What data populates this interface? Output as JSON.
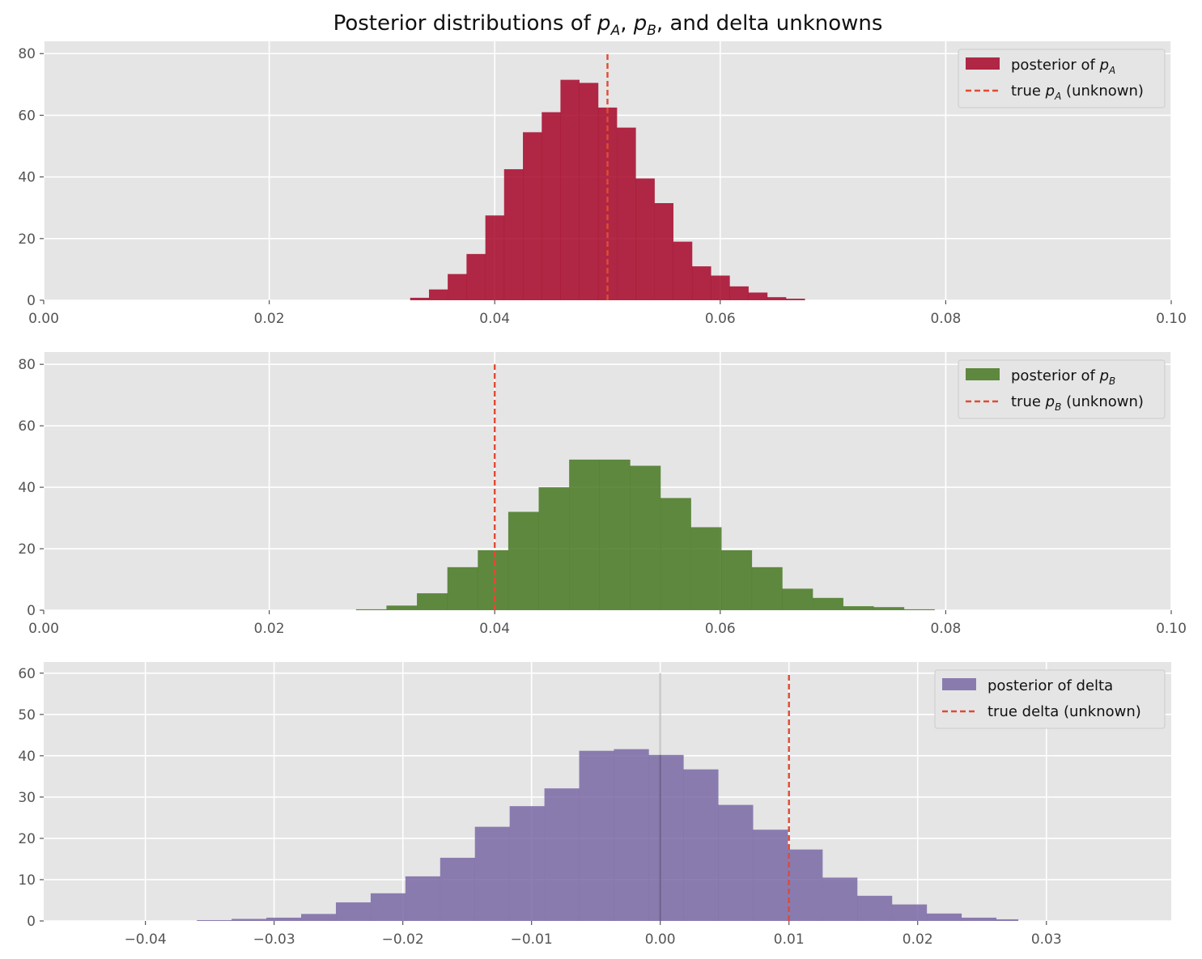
{
  "title": {
    "prefix": "Posterior distributions of ",
    "p": "p",
    "a_sub": "A",
    "sep1": ", ",
    "b_sub": "B",
    "suffix": ", and delta unknowns"
  },
  "chart_data": [
    {
      "type": "bar",
      "subtype": "histogram",
      "xlim": [
        0.0,
        0.1
      ],
      "ylim": [
        0,
        84
      ],
      "xticks": [
        0.0,
        0.02,
        0.04,
        0.06,
        0.08,
        0.1
      ],
      "xtick_labels": [
        "0.00",
        "0.02",
        "0.04",
        "0.06",
        "0.08",
        "0.10"
      ],
      "yticks": [
        0,
        20,
        40,
        60,
        80
      ],
      "ytick_labels": [
        "0",
        "20",
        "40",
        "60",
        "80"
      ],
      "grid": true,
      "legend_position": "top-right",
      "series": [
        {
          "name": "posterior of p_A",
          "legend_prefix": "posterior of ",
          "legend_var": "p",
          "legend_sub": "A",
          "legend_suffix": "",
          "color": "#A60628",
          "bin_edges": [
            0.0325,
            0.03417,
            0.03583,
            0.0375,
            0.03917,
            0.04083,
            0.0425,
            0.04417,
            0.04583,
            0.0475,
            0.04917,
            0.05083,
            0.0525,
            0.05417,
            0.05583,
            0.0575,
            0.05917,
            0.06083,
            0.0625,
            0.06417,
            0.06583,
            0.0675
          ],
          "values": [
            0.8,
            3.5,
            8.5,
            15,
            27.5,
            42.5,
            54.5,
            61,
            71.5,
            70.5,
            62.5,
            56,
            39.5,
            31.5,
            19,
            11,
            8,
            4.5,
            2.5,
            1,
            0.5
          ]
        }
      ],
      "reference_line": {
        "name": "true p_A (unknown)",
        "legend_prefix": "true ",
        "legend_var": "p",
        "legend_sub": "A",
        "legend_suffix": " (unknown)",
        "x": 0.05,
        "y_range": [
          0,
          80
        ],
        "color": "#E24A33",
        "style": "dashed"
      }
    },
    {
      "type": "bar",
      "subtype": "histogram",
      "xlim": [
        0.0,
        0.1
      ],
      "ylim": [
        0,
        84
      ],
      "xticks": [
        0.0,
        0.02,
        0.04,
        0.06,
        0.08,
        0.1
      ],
      "xtick_labels": [
        "0.00",
        "0.02",
        "0.04",
        "0.06",
        "0.08",
        "0.10"
      ],
      "yticks": [
        0,
        20,
        40,
        60,
        80
      ],
      "ytick_labels": [
        "0",
        "20",
        "40",
        "60",
        "80"
      ],
      "grid": true,
      "legend_position": "top-right",
      "series": [
        {
          "name": "posterior of p_B",
          "legend_prefix": "posterior of ",
          "legend_var": "p",
          "legend_sub": "B",
          "legend_suffix": "",
          "color": "#467821",
          "bin_edges": [
            0.0277,
            0.0304,
            0.0331,
            0.0358,
            0.0385,
            0.0412,
            0.0439,
            0.0466,
            0.0493,
            0.052,
            0.0547,
            0.0574,
            0.0601,
            0.0628,
            0.0655,
            0.0682,
            0.0709,
            0.0736,
            0.0763,
            0.079
          ],
          "values": [
            0.3,
            1.5,
            5.5,
            14,
            19.5,
            32,
            40,
            49,
            49,
            47,
            36.5,
            27,
            19.5,
            14,
            7,
            4,
            1.3,
            1,
            0.3
          ]
        }
      ],
      "reference_line": {
        "name": "true p_B (unknown)",
        "legend_prefix": "true ",
        "legend_var": "p",
        "legend_sub": "B",
        "legend_suffix": " (unknown)",
        "x": 0.04,
        "y_range": [
          0,
          80
        ],
        "color": "#E24A33",
        "style": "dashed"
      }
    },
    {
      "type": "bar",
      "subtype": "histogram",
      "xlim": [
        -0.0479,
        0.0397
      ],
      "ylim": [
        0,
        62.7
      ],
      "xticks": [
        -0.04,
        -0.03,
        -0.02,
        -0.01,
        0.0,
        0.01,
        0.02,
        0.03
      ],
      "xtick_labels": [
        "−0.04",
        "−0.03",
        "−0.02",
        "−0.01",
        "0.00",
        "0.01",
        "0.02",
        "0.03"
      ],
      "yticks": [
        0,
        10,
        20,
        30,
        40,
        50,
        60
      ],
      "ytick_labels": [
        "0",
        "10",
        "20",
        "30",
        "40",
        "50",
        "60"
      ],
      "grid": true,
      "legend_position": "top-right",
      "series": [
        {
          "name": "posterior of delta",
          "legend_prefix": "posterior of delta",
          "legend_var": "",
          "legend_sub": "",
          "legend_suffix": "",
          "color": "#7A68A6",
          "bin_edges": [
            -0.036,
            -0.0333,
            -0.0306,
            -0.0279,
            -0.0252,
            -0.0225,
            -0.0198,
            -0.0171,
            -0.0144,
            -0.0117,
            -0.009,
            -0.0063,
            -0.0036,
            -0.0009,
            0.0018,
            0.0045,
            0.0072,
            0.0099,
            0.0126,
            0.0153,
            0.018,
            0.0207,
            0.0234,
            0.0261,
            0.0278
          ],
          "values": [
            0.2,
            0.5,
            0.8,
            1.7,
            4.5,
            6.7,
            10.8,
            15.3,
            22.8,
            27.8,
            32.1,
            41.2,
            41.6,
            40.2,
            36.7,
            28.1,
            22.1,
            17.3,
            10.5,
            6.1,
            4.0,
            1.8,
            0.8,
            0.4
          ]
        }
      ],
      "reference_line": {
        "name": "true delta (unknown)",
        "legend_prefix": "true delta (unknown)",
        "legend_var": "",
        "legend_sub": "",
        "legend_suffix": "",
        "x": 0.01,
        "y_range": [
          0,
          60
        ],
        "color": "#E24A33",
        "style": "dashed"
      },
      "zero_line": {
        "x": 0.0,
        "y_range": [
          0,
          60
        ],
        "color": "#000000",
        "opacity": 0.2
      }
    }
  ]
}
